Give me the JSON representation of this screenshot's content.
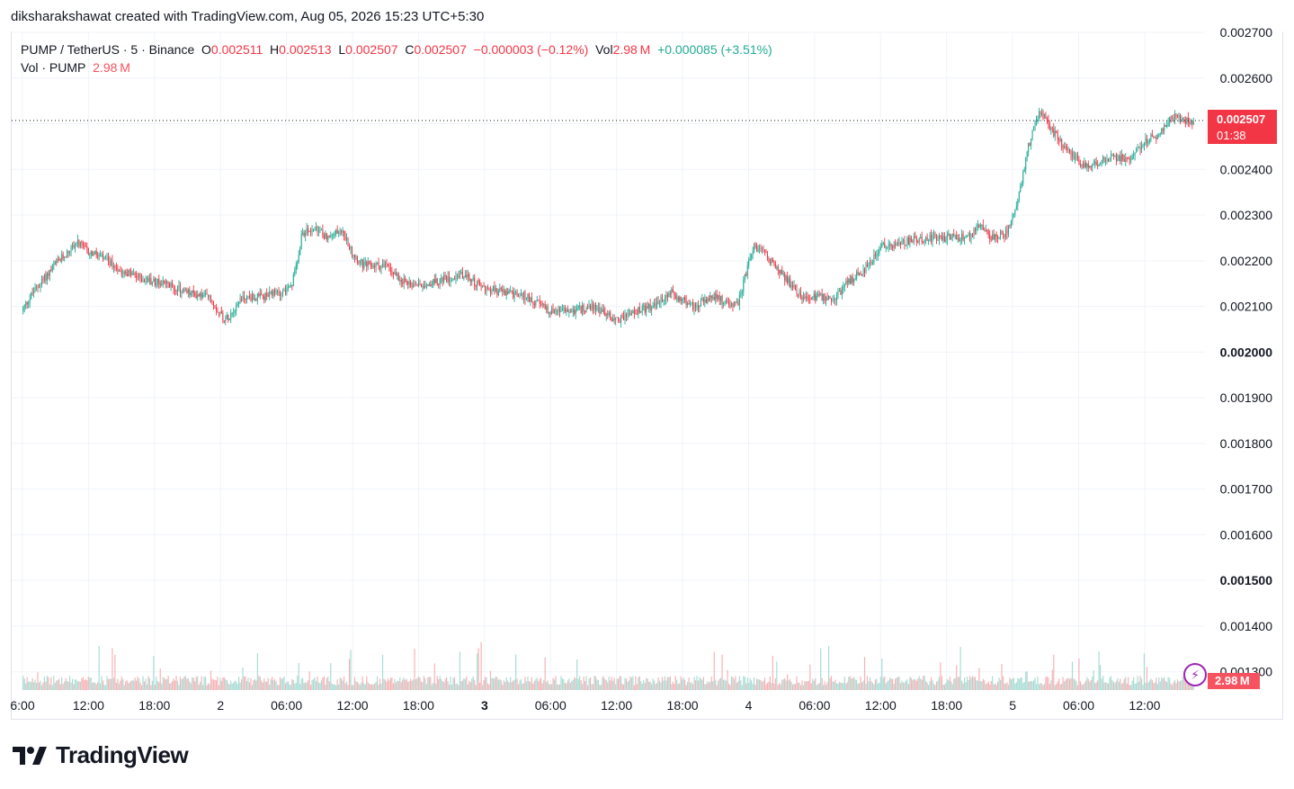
{
  "header": {
    "attribution": "diksharakshawat created with TradingView.com, Aug 05, 2026 15:23 UTC+5:30"
  },
  "legend": {
    "symbol": "PUMP / TetherUS · 5 · Binance",
    "o_label": "O",
    "o_value": "0.002511",
    "h_label": "H",
    "h_value": "0.002513",
    "l_label": "L",
    "l_value": "0.002507",
    "c_label": "C",
    "c_value": "0.002507",
    "change": "−0.000003 (−0.12%)",
    "vol_label": "Vol",
    "vol_value": "2.98 M",
    "vol_change": "+0.000085 (+3.51%)",
    "vol_line_label": "Vol · PUMP",
    "vol_line_value": "2.98 M"
  },
  "price_badge": {
    "price": "0.002507",
    "countdown": "01:38"
  },
  "volume_badge": "2.98 M",
  "logo": {
    "text": "TradingView"
  },
  "colors": {
    "up": "#22ab94",
    "down": "#f23645",
    "vol_up": "#a8dcd4",
    "vol_down": "#f7b2b6",
    "grid": "#f0f3fa",
    "axis_text": "#131722"
  },
  "chart_data": {
    "type": "candlestick",
    "symbol": "PUMP / TetherUS",
    "interval": "5",
    "exchange": "Binance",
    "ylim": [
      0.00126,
      0.0027
    ],
    "y_ticks": [
      "0.002700",
      "0.002600",
      "0.002500",
      "0.002400",
      "0.002300",
      "0.002200",
      "0.002100",
      "0.002000",
      "0.001900",
      "0.001800",
      "0.001700",
      "0.001600",
      "0.001500",
      "0.001400",
      "0.001300"
    ],
    "y_ticks_bold": [
      "0.002000",
      "0.001500"
    ],
    "x_ticks": [
      {
        "label": "6:00",
        "t": 0
      },
      {
        "label": "12:00",
        "t": 6
      },
      {
        "label": "18:00",
        "t": 12
      },
      {
        "label": "2",
        "t": 18
      },
      {
        "label": "06:00",
        "t": 24
      },
      {
        "label": "12:00",
        "t": 30
      },
      {
        "label": "18:00",
        "t": 36
      },
      {
        "label": "3",
        "t": 42,
        "bold": true
      },
      {
        "label": "06:00",
        "t": 48
      },
      {
        "label": "12:00",
        "t": 54
      },
      {
        "label": "18:00",
        "t": 60
      },
      {
        "label": "4",
        "t": 66
      },
      {
        "label": "06:00",
        "t": 72
      },
      {
        "label": "12:00",
        "t": 78
      },
      {
        "label": "18:00",
        "t": 84
      },
      {
        "label": "5",
        "t": 90
      },
      {
        "label": "06:00",
        "t": 96
      },
      {
        "label": "12:00",
        "t": 102
      }
    ],
    "t_range": [
      0,
      106.5
    ],
    "last_price": 0.002507,
    "price_path": [
      [
        0,
        0.00209
      ],
      [
        1,
        0.00213
      ],
      [
        3,
        0.00219
      ],
      [
        5,
        0.00224
      ],
      [
        6,
        0.00222
      ],
      [
        7,
        0.00221
      ],
      [
        9,
        0.00218
      ],
      [
        11,
        0.00216
      ],
      [
        13,
        0.00215
      ],
      [
        15,
        0.00213
      ],
      [
        17,
        0.00212
      ],
      [
        18.5,
        0.00207
      ],
      [
        20,
        0.00212
      ],
      [
        22,
        0.00212
      ],
      [
        24.5,
        0.00214
      ],
      [
        25.5,
        0.00226
      ],
      [
        26.5,
        0.00227
      ],
      [
        28,
        0.00225
      ],
      [
        29,
        0.00227
      ],
      [
        30,
        0.00222
      ],
      [
        31,
        0.00219
      ],
      [
        33,
        0.00219
      ],
      [
        35,
        0.00215
      ],
      [
        37,
        0.00215
      ],
      [
        40,
        0.00217
      ],
      [
        42,
        0.00214
      ],
      [
        44,
        0.00213
      ],
      [
        46,
        0.00212
      ],
      [
        48,
        0.00209
      ],
      [
        50,
        0.00209
      ],
      [
        52,
        0.0021
      ],
      [
        54,
        0.00207
      ],
      [
        56,
        0.00209
      ],
      [
        57.5,
        0.0021
      ],
      [
        59,
        0.00213
      ],
      [
        61,
        0.0021
      ],
      [
        63,
        0.00212
      ],
      [
        65,
        0.0021
      ],
      [
        66.5,
        0.00223
      ],
      [
        67.5,
        0.00222
      ],
      [
        69,
        0.00217
      ],
      [
        71,
        0.00212
      ],
      [
        73,
        0.00212
      ],
      [
        74,
        0.00212
      ],
      [
        75,
        0.00215
      ],
      [
        77,
        0.00219
      ],
      [
        78,
        0.00223
      ],
      [
        80,
        0.00224
      ],
      [
        82,
        0.00225
      ],
      [
        84,
        0.00225
      ],
      [
        86,
        0.00225
      ],
      [
        87,
        0.00228
      ],
      [
        88,
        0.00225
      ],
      [
        89.5,
        0.00226
      ],
      [
        90.5,
        0.00233
      ],
      [
        91.5,
        0.00245
      ],
      [
        92.5,
        0.00253
      ],
      [
        93.5,
        0.00249
      ],
      [
        95,
        0.00244
      ],
      [
        96,
        0.00242
      ],
      [
        97,
        0.0024
      ],
      [
        99,
        0.00243
      ],
      [
        100.5,
        0.00242
      ],
      [
        102,
        0.00246
      ],
      [
        103.5,
        0.00248
      ],
      [
        104.5,
        0.00252
      ],
      [
        105.5,
        0.00251
      ],
      [
        106.5,
        0.002507
      ]
    ],
    "volume_spikes": [
      {
        "t": 25,
        "v": 1.0
      },
      {
        "t": 26,
        "v": 1.3
      },
      {
        "t": 26.5,
        "v": 0.9
      },
      {
        "t": 27,
        "v": 0.5
      },
      {
        "t": 42,
        "v": 0.6
      },
      {
        "t": 67,
        "v": 0.7
      },
      {
        "t": 69.5,
        "v": 1.1
      },
      {
        "t": 69,
        "v": 0.45
      },
      {
        "t": 90,
        "v": 0.85
      },
      {
        "t": 91.2,
        "v": 1.3
      },
      {
        "t": 91.8,
        "v": 0.6
      },
      {
        "t": 92.5,
        "v": 0.5
      },
      {
        "t": 103.5,
        "v": 0.6
      },
      {
        "t": 58,
        "v": 0.5
      },
      {
        "t": 5,
        "v": 0.45
      },
      {
        "t": 80,
        "v": 0.4
      }
    ]
  }
}
